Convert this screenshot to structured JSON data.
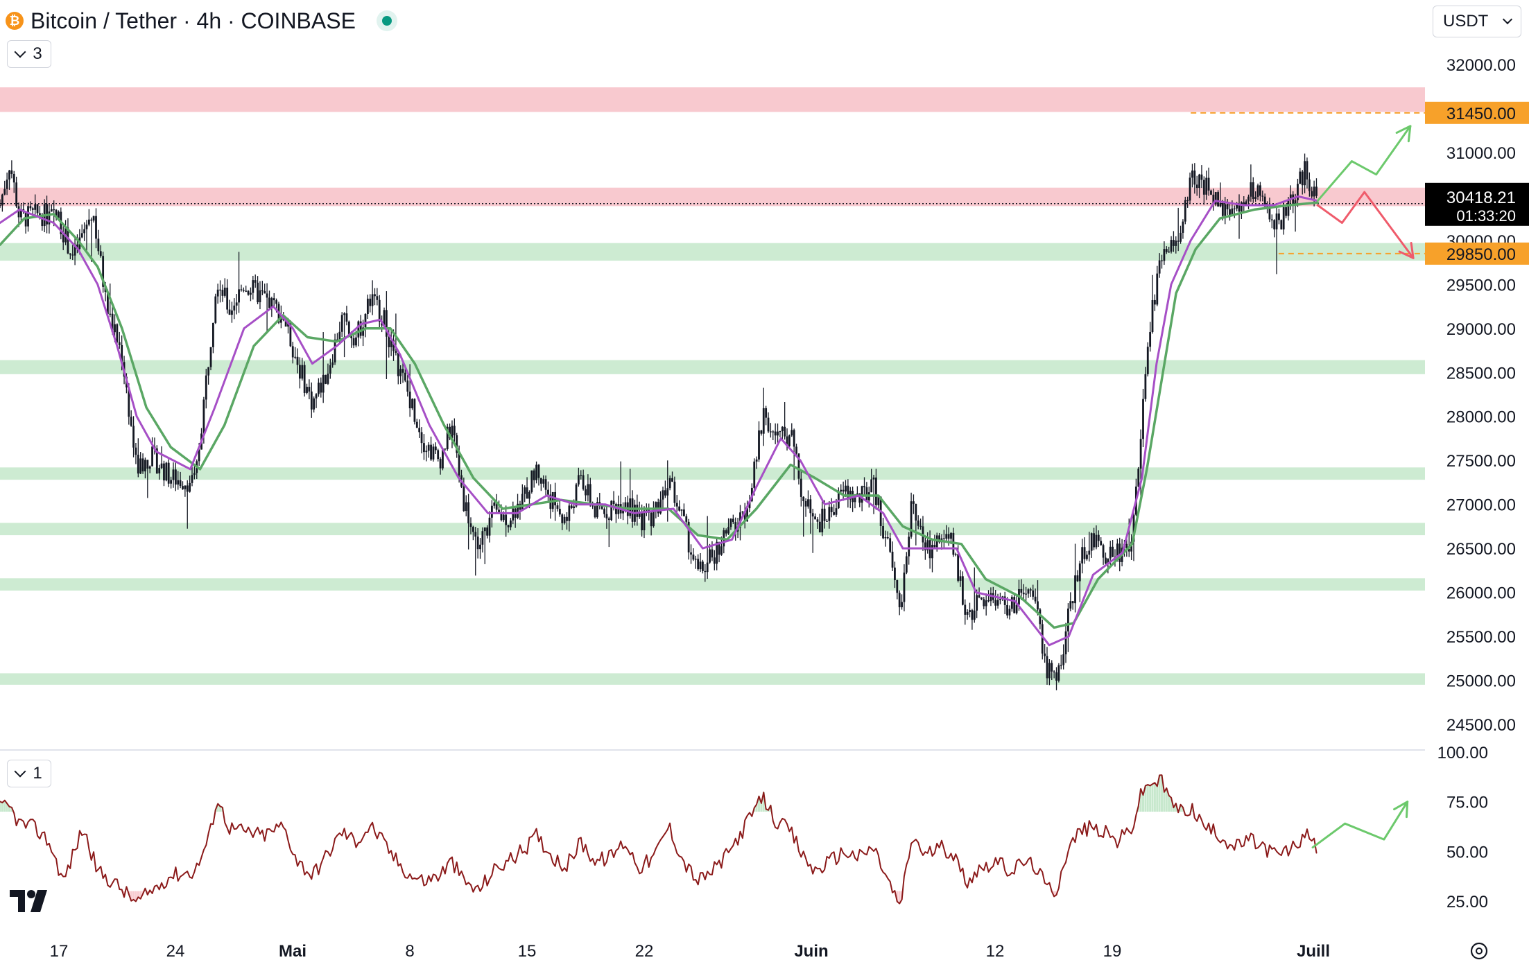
{
  "header": {
    "symbol_title": "Bitcoin / Tether · 4h · COINBASE",
    "main_indicator_count": "3",
    "rsi_indicator_count": "1",
    "currency": "USDT"
  },
  "colors": {
    "resistance_zone": "#f8c9cf",
    "support_zone": "#cdebd2",
    "ema_fast": "#a64fc6",
    "ema_slow": "#5aa764",
    "rsi_line": "#8b1a1a",
    "up_arrow": "#6cc96c",
    "down_arrow": "#ef5b6b",
    "level_marker": "#f7a12a"
  },
  "chart_data": [
    {
      "type": "candlestick",
      "panel": "price",
      "x_ticks": [
        "17",
        "24",
        "Mai",
        "8",
        "15",
        "22",
        "Juin",
        "12",
        "19",
        "Juill"
      ],
      "y_ticks": [
        "32000.00",
        "31000.00",
        "30000.00",
        "29500.00",
        "29000.00",
        "28500.00",
        "28000.00",
        "27500.00",
        "27000.00",
        "26500.00",
        "26000.00",
        "25500.00",
        "25000.00",
        "24500.00"
      ],
      "ylim": [
        24250,
        32600
      ],
      "last_price": "30418.21",
      "countdown": "01:33:20",
      "markers": [
        {
          "price": 31450,
          "label": "31450.00"
        },
        {
          "price": 29850,
          "label": "29850.00"
        }
      ],
      "resistance_zones": [
        [
          31460,
          31740
        ],
        [
          30390,
          30600
        ]
      ],
      "support_zones": [
        [
          29770,
          29970
        ],
        [
          28480,
          28640
        ],
        [
          27280,
          27420
        ],
        [
          26650,
          26790
        ],
        [
          26020,
          26160
        ],
        [
          24950,
          25080
        ]
      ],
      "close_path": [
        [
          0,
          30400
        ],
        [
          10,
          30900
        ],
        [
          20,
          30250
        ],
        [
          40,
          30300
        ],
        [
          60,
          30250
        ],
        [
          75,
          29800
        ],
        [
          95,
          30350
        ],
        [
          110,
          29200
        ],
        [
          125,
          28700
        ],
        [
          140,
          27400
        ],
        [
          155,
          27550
        ],
        [
          175,
          27300
        ],
        [
          200,
          27250
        ],
        [
          215,
          28800
        ],
        [
          222,
          29600
        ],
        [
          235,
          29200
        ],
        [
          250,
          29500
        ],
        [
          270,
          29350
        ],
        [
          290,
          29150
        ],
        [
          305,
          28600
        ],
        [
          320,
          28150
        ],
        [
          335,
          28500
        ],
        [
          350,
          29100
        ],
        [
          365,
          28900
        ],
        [
          380,
          29350
        ],
        [
          392,
          29150
        ],
        [
          405,
          28650
        ],
        [
          420,
          28200
        ],
        [
          435,
          27700
        ],
        [
          450,
          27500
        ],
        [
          463,
          27900
        ],
        [
          475,
          27050
        ],
        [
          490,
          26500
        ],
        [
          505,
          26900
        ],
        [
          520,
          26850
        ],
        [
          535,
          27050
        ],
        [
          550,
          27400
        ],
        [
          565,
          27050
        ],
        [
          580,
          26800
        ],
        [
          595,
          27300
        ],
        [
          610,
          26900
        ],
        [
          625,
          26950
        ],
        [
          640,
          27050
        ],
        [
          655,
          26800
        ],
        [
          670,
          26900
        ],
        [
          685,
          27300
        ],
        [
          700,
          26800
        ],
        [
          715,
          26200
        ],
        [
          730,
          26400
        ],
        [
          745,
          26700
        ],
        [
          760,
          26800
        ],
        [
          772,
          27300
        ],
        [
          782,
          28050
        ],
        [
          795,
          27750
        ],
        [
          810,
          27800
        ],
        [
          822,
          27100
        ],
        [
          835,
          26750
        ],
        [
          850,
          26900
        ],
        [
          865,
          27150
        ],
        [
          880,
          27050
        ],
        [
          895,
          27200
        ],
        [
          910,
          26500
        ],
        [
          922,
          25800
        ],
        [
          935,
          27050
        ],
        [
          948,
          26450
        ],
        [
          962,
          26600
        ],
        [
          975,
          26550
        ],
        [
          990,
          25750
        ],
        [
          1005,
          25900
        ],
        [
          1020,
          25950
        ],
        [
          1035,
          25800
        ],
        [
          1050,
          26000
        ],
        [
          1062,
          25850
        ],
        [
          1072,
          25150
        ],
        [
          1082,
          24950
        ],
        [
          1092,
          25550
        ],
        [
          1105,
          26300
        ],
        [
          1118,
          26600
        ],
        [
          1130,
          26450
        ],
        [
          1145,
          26450
        ],
        [
          1160,
          26600
        ],
        [
          1170,
          28000
        ],
        [
          1180,
          29200
        ],
        [
          1190,
          29800
        ],
        [
          1200,
          29900
        ],
        [
          1210,
          30100
        ],
        [
          1220,
          30700
        ],
        [
          1235,
          30600
        ],
        [
          1250,
          30400
        ],
        [
          1265,
          30300
        ],
        [
          1280,
          30600
        ],
        [
          1295,
          30450
        ],
        [
          1310,
          30150
        ],
        [
          1325,
          30500
        ],
        [
          1338,
          30800
        ],
        [
          1350,
          30418
        ]
      ],
      "ema_fast_path": [
        [
          0,
          30200
        ],
        [
          20,
          30350
        ],
        [
          55,
          30200
        ],
        [
          80,
          29900
        ],
        [
          100,
          29500
        ],
        [
          120,
          28800
        ],
        [
          140,
          28000
        ],
        [
          160,
          27600
        ],
        [
          195,
          27400
        ],
        [
          220,
          28100
        ],
        [
          250,
          29000
        ],
        [
          280,
          29250
        ],
        [
          300,
          29000
        ],
        [
          320,
          28600
        ],
        [
          345,
          28800
        ],
        [
          370,
          29050
        ],
        [
          390,
          29100
        ],
        [
          410,
          28700
        ],
        [
          440,
          27900
        ],
        [
          470,
          27300
        ],
        [
          500,
          26900
        ],
        [
          530,
          26900
        ],
        [
          560,
          27100
        ],
        [
          590,
          27000
        ],
        [
          620,
          27000
        ],
        [
          650,
          26900
        ],
        [
          690,
          26950
        ],
        [
          720,
          26500
        ],
        [
          750,
          26600
        ],
        [
          775,
          27200
        ],
        [
          800,
          27750
        ],
        [
          820,
          27500
        ],
        [
          845,
          27000
        ],
        [
          880,
          27100
        ],
        [
          905,
          26900
        ],
        [
          925,
          26500
        ],
        [
          950,
          26500
        ],
        [
          980,
          26500
        ],
        [
          1000,
          26000
        ],
        [
          1040,
          25900
        ],
        [
          1075,
          25400
        ],
        [
          1095,
          25500
        ],
        [
          1120,
          26200
        ],
        [
          1150,
          26450
        ],
        [
          1170,
          27300
        ],
        [
          1185,
          28600
        ],
        [
          1200,
          29500
        ],
        [
          1220,
          30000
        ],
        [
          1245,
          30450
        ],
        [
          1275,
          30400
        ],
        [
          1305,
          30400
        ],
        [
          1330,
          30500
        ],
        [
          1350,
          30450
        ]
      ],
      "ema_slow_path": [
        [
          0,
          29950
        ],
        [
          25,
          30250
        ],
        [
          55,
          30300
        ],
        [
          80,
          30000
        ],
        [
          100,
          29700
        ],
        [
          125,
          29000
        ],
        [
          150,
          28100
        ],
        [
          175,
          27650
        ],
        [
          205,
          27400
        ],
        [
          230,
          27900
        ],
        [
          260,
          28800
        ],
        [
          290,
          29150
        ],
        [
          315,
          28900
        ],
        [
          345,
          28850
        ],
        [
          375,
          29000
        ],
        [
          400,
          29000
        ],
        [
          425,
          28600
        ],
        [
          455,
          27900
        ],
        [
          485,
          27300
        ],
        [
          515,
          26950
        ],
        [
          545,
          27000
        ],
        [
          575,
          27050
        ],
        [
          610,
          27000
        ],
        [
          645,
          26950
        ],
        [
          685,
          26950
        ],
        [
          715,
          26650
        ],
        [
          745,
          26600
        ],
        [
          775,
          26950
        ],
        [
          810,
          27450
        ],
        [
          835,
          27300
        ],
        [
          865,
          27100
        ],
        [
          900,
          27100
        ],
        [
          925,
          26750
        ],
        [
          955,
          26600
        ],
        [
          985,
          26550
        ],
        [
          1010,
          26150
        ],
        [
          1045,
          25950
        ],
        [
          1080,
          25600
        ],
        [
          1100,
          25650
        ],
        [
          1125,
          26150
        ],
        [
          1160,
          26550
        ],
        [
          1175,
          27400
        ],
        [
          1190,
          28400
        ],
        [
          1205,
          29400
        ],
        [
          1225,
          29900
        ],
        [
          1250,
          30250
        ],
        [
          1285,
          30350
        ],
        [
          1320,
          30400
        ],
        [
          1350,
          30430
        ]
      ],
      "scenario_up": [
        [
          1350,
          30450
        ],
        [
          1385,
          30900
        ],
        [
          1410,
          30750
        ],
        [
          1445,
          31300
        ]
      ],
      "scenario_down": [
        [
          1350,
          30400
        ],
        [
          1375,
          30200
        ],
        [
          1398,
          30550
        ],
        [
          1448,
          29800
        ]
      ]
    },
    {
      "type": "line",
      "panel": "rsi",
      "y_ticks": [
        "100.00",
        "75.00",
        "50.00",
        "25.00"
      ],
      "ylim": [
        15,
        100
      ],
      "overbought": 70,
      "oversold": 30,
      "rsi_path": [
        [
          0,
          72
        ],
        [
          10,
          72
        ],
        [
          20,
          64
        ],
        [
          35,
          62
        ],
        [
          50,
          55
        ],
        [
          65,
          35
        ],
        [
          85,
          62
        ],
        [
          100,
          40
        ],
        [
          120,
          33
        ],
        [
          140,
          24
        ],
        [
          155,
          30
        ],
        [
          175,
          38
        ],
        [
          200,
          40
        ],
        [
          215,
          58
        ],
        [
          222,
          77
        ],
        [
          235,
          62
        ],
        [
          250,
          60
        ],
        [
          270,
          58
        ],
        [
          290,
          63
        ],
        [
          305,
          45
        ],
        [
          320,
          38
        ],
        [
          335,
          48
        ],
        [
          350,
          60
        ],
        [
          365,
          55
        ],
        [
          380,
          63
        ],
        [
          392,
          55
        ],
        [
          405,
          46
        ],
        [
          420,
          38
        ],
        [
          435,
          35
        ],
        [
          450,
          38
        ],
        [
          463,
          45
        ],
        [
          475,
          35
        ],
        [
          490,
          30
        ],
        [
          505,
          40
        ],
        [
          520,
          45
        ],
        [
          535,
          50
        ],
        [
          550,
          58
        ],
        [
          565,
          48
        ],
        [
          580,
          42
        ],
        [
          595,
          55
        ],
        [
          610,
          45
        ],
        [
          625,
          47
        ],
        [
          640,
          55
        ],
        [
          655,
          42
        ],
        [
          670,
          47
        ],
        [
          685,
          63
        ],
        [
          700,
          45
        ],
        [
          715,
          35
        ],
        [
          730,
          40
        ],
        [
          745,
          48
        ],
        [
          760,
          60
        ],
        [
          772,
          70
        ],
        [
          782,
          77
        ],
        [
          795,
          65
        ],
        [
          810,
          60
        ],
        [
          822,
          48
        ],
        [
          835,
          40
        ],
        [
          850,
          45
        ],
        [
          865,
          50
        ],
        [
          880,
          47
        ],
        [
          895,
          52
        ],
        [
          910,
          35
        ],
        [
          922,
          22
        ],
        [
          935,
          58
        ],
        [
          948,
          48
        ],
        [
          962,
          52
        ],
        [
          975,
          50
        ],
        [
          990,
          35
        ],
        [
          1005,
          42
        ],
        [
          1020,
          45
        ],
        [
          1035,
          40
        ],
        [
          1050,
          45
        ],
        [
          1062,
          42
        ],
        [
          1072,
          32
        ],
        [
          1082,
          30
        ],
        [
          1092,
          48
        ],
        [
          1105,
          60
        ],
        [
          1118,
          62
        ],
        [
          1130,
          60
        ],
        [
          1145,
          55
        ],
        [
          1160,
          62
        ],
        [
          1170,
          80
        ],
        [
          1180,
          85
        ],
        [
          1190,
          85
        ],
        [
          1200,
          75
        ],
        [
          1210,
          70
        ],
        [
          1220,
          72
        ],
        [
          1235,
          62
        ],
        [
          1250,
          58
        ],
        [
          1265,
          52
        ],
        [
          1280,
          56
        ],
        [
          1295,
          52
        ],
        [
          1310,
          48
        ],
        [
          1325,
          52
        ],
        [
          1338,
          58
        ],
        [
          1350,
          52
        ]
      ],
      "scenario_up": [
        [
          1345,
          52
        ],
        [
          1378,
          64
        ],
        [
          1418,
          56
        ],
        [
          1442,
          75
        ]
      ]
    }
  ],
  "footer": {
    "x_ticks": [
      "17",
      "24",
      "Mai",
      "8",
      "15",
      "22",
      "Juin",
      "12",
      "19",
      "Juill"
    ]
  }
}
